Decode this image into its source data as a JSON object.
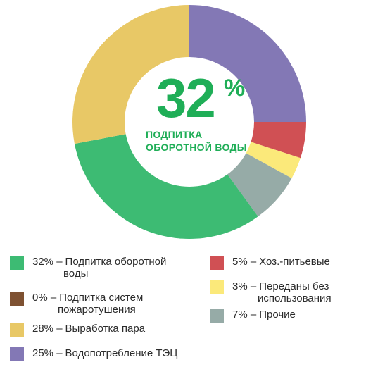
{
  "chart_data": {
    "type": "pie",
    "variant": "donut",
    "center": {
      "value": "32",
      "unit": "%",
      "label_lines": [
        "ПОДПИТКА",
        "ОБОРОТНОЙ ВОДЫ"
      ]
    },
    "slices": [
      {
        "label": "Водопотребление ТЭЦ",
        "value": 25,
        "color": "#8378b5"
      },
      {
        "label": "Хоз.-питьевые",
        "value": 5,
        "color": "#d05054"
      },
      {
        "label": "Переданы без использования",
        "value": 3,
        "color": "#fbe97a"
      },
      {
        "label": "Прочие",
        "value": 7,
        "color": "#96aba7"
      },
      {
        "label": "Подпитка оборотной воды",
        "value": 32,
        "color": "#3dbb73"
      },
      {
        "label": "Подпитка систем пожаротушения",
        "value": 0,
        "color": "#7e5132"
      },
      {
        "label": "Выработка пара",
        "value": 28,
        "color": "#e8c866"
      }
    ],
    "legend": [
      {
        "pct": "32% –",
        "lines": [
          "Подпитка  оборотной",
          "воды"
        ],
        "color": "#3dbb73",
        "column": "left"
      },
      {
        "pct": "0% –",
        "lines": [
          "Подпитка систем",
          "пожаротушения"
        ],
        "color": "#7e5132",
        "column": "left"
      },
      {
        "pct": "28% –",
        "lines": [
          "Выработка пара"
        ],
        "color": "#e8c866",
        "column": "left"
      },
      {
        "pct": "25% –",
        "lines": [
          "Водопотребление ТЭЦ"
        ],
        "color": "#8378b5",
        "column": "left"
      },
      {
        "pct": "5% –",
        "lines": [
          "Хоз.-питьевые"
        ],
        "color": "#d05054",
        "column": "right"
      },
      {
        "pct": "3% –",
        "lines": [
          "Переданы без",
          "использования"
        ],
        "color": "#fbe97a",
        "column": "right"
      },
      {
        "pct": "7% –",
        "lines": [
          "Прочие"
        ],
        "color": "#96aba7",
        "column": "right"
      }
    ]
  }
}
